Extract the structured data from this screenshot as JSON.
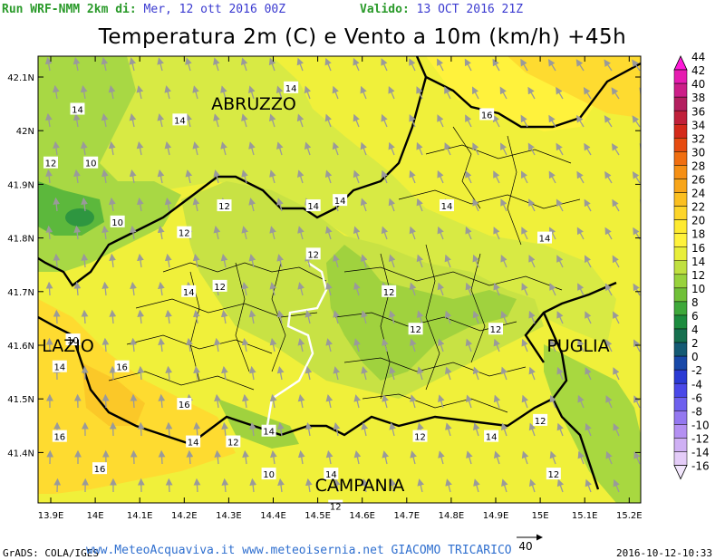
{
  "header": {
    "run_label": "Run WRF-NMM 2km di:",
    "run_date": "Mer, 12 ott 2016 00Z",
    "valid_label": "Valido:",
    "valid_date": "13 OCT 2016 21Z"
  },
  "title": "Temperatura 2m (C) e Vento a 10m (km/h) +45h",
  "axes": {
    "lon_ticks": [
      "13.9E",
      "14E",
      "14.1E",
      "14.2E",
      "14.3E",
      "14.4E",
      "14.5E",
      "14.6E",
      "14.7E",
      "14.8E",
      "14.9E",
      "15E",
      "15.1E",
      "15.2E"
    ],
    "lat_ticks": [
      "42.1N",
      "42N",
      "41.9N",
      "41.8N",
      "41.7N",
      "41.6N",
      "41.5N",
      "41.4N"
    ]
  },
  "regions": {
    "abruzzo": "ABRUZZO",
    "lazio": "LAZIO",
    "puglia": "PUGLIA",
    "campania": "CAMPANIA"
  },
  "contour_labels": [
    {
      "text": "14",
      "lon": 13.96,
      "lat": 42.04
    },
    {
      "text": "12",
      "lon": 13.9,
      "lat": 41.94
    },
    {
      "text": "10",
      "lon": 13.99,
      "lat": 41.94
    },
    {
      "text": "10",
      "lon": 14.05,
      "lat": 41.83
    },
    {
      "text": "14",
      "lon": 14.19,
      "lat": 42.02
    },
    {
      "text": "14",
      "lon": 14.44,
      "lat": 42.08
    },
    {
      "text": "16",
      "lon": 14.88,
      "lat": 42.03
    },
    {
      "text": "14",
      "lon": 14.79,
      "lat": 41.86
    },
    {
      "text": "14",
      "lon": 14.49,
      "lat": 41.86
    },
    {
      "text": "14",
      "lon": 14.55,
      "lat": 41.87
    },
    {
      "text": "12",
      "lon": 14.29,
      "lat": 41.86
    },
    {
      "text": "12",
      "lon": 14.2,
      "lat": 41.81
    },
    {
      "text": "12",
      "lon": 14.49,
      "lat": 41.77
    },
    {
      "text": "14",
      "lon": 15.01,
      "lat": 41.8
    },
    {
      "text": "14",
      "lon": 14.21,
      "lat": 41.7
    },
    {
      "text": "12",
      "lon": 14.28,
      "lat": 41.71
    },
    {
      "text": "12",
      "lon": 14.66,
      "lat": 41.7
    },
    {
      "text": "12",
      "lon": 14.72,
      "lat": 41.63
    },
    {
      "text": "12",
      "lon": 14.9,
      "lat": 41.63
    },
    {
      "text": "10",
      "lon": 13.95,
      "lat": 41.61
    },
    {
      "text": "14",
      "lon": 13.92,
      "lat": 41.56
    },
    {
      "text": "16",
      "lon": 14.06,
      "lat": 41.56
    },
    {
      "text": "16",
      "lon": 14.2,
      "lat": 41.49
    },
    {
      "text": "12",
      "lon": 15.0,
      "lat": 41.46
    },
    {
      "text": "14",
      "lon": 14.89,
      "lat": 41.43
    },
    {
      "text": "16",
      "lon": 13.92,
      "lat": 41.43
    },
    {
      "text": "14",
      "lon": 14.22,
      "lat": 41.42
    },
    {
      "text": "12",
      "lon": 14.31,
      "lat": 41.42
    },
    {
      "text": "14",
      "lon": 14.39,
      "lat": 41.44
    },
    {
      "text": "12",
      "lon": 14.73,
      "lat": 41.43
    },
    {
      "text": "16",
      "lon": 14.01,
      "lat": 41.37
    },
    {
      "text": "10",
      "lon": 14.39,
      "lat": 41.36
    },
    {
      "text": "14",
      "lon": 14.53,
      "lat": 41.36
    },
    {
      "text": "12",
      "lon": 15.03,
      "lat": 41.36
    },
    {
      "text": "12",
      "lon": 14.54,
      "lat": 41.3
    }
  ],
  "legend": {
    "labels": [
      "44",
      "42",
      "40",
      "38",
      "36",
      "34",
      "32",
      "30",
      "28",
      "26",
      "24",
      "22",
      "20",
      "18",
      "16",
      "14",
      "12",
      "10",
      "8",
      "6",
      "4",
      "2",
      "0",
      "-2",
      "-4",
      "-6",
      "-8",
      "-10",
      "-12",
      "-14",
      "-16"
    ],
    "colors": [
      "#ff1ad9",
      "#e61cb0",
      "#cc1e88",
      "#b31f5f",
      "#c0203a",
      "#d42a1a",
      "#e64b10",
      "#f06e10",
      "#f58f14",
      "#f8a519",
      "#fbbf20",
      "#fdd52a",
      "#feea30",
      "#fff23c",
      "#e8ee3a",
      "#c0e040",
      "#98d23c",
      "#70c038",
      "#3ea83a",
      "#1c8c3e",
      "#16704f",
      "#145a74",
      "#1848a8",
      "#2a3ad4",
      "#4a48e8",
      "#6e60ee",
      "#9478f0",
      "#b490f2",
      "#cfb0f4",
      "#e4ccf8",
      "#f2e6fc"
    ]
  },
  "scale_arrow_label": "40",
  "footer": {
    "credit": "GrADS: COLA/IGES",
    "site": "www.MeteoAcquaviva.it www.meteoisernia.net GIACOMO TRICARICO",
    "timestamp": "2016-10-12-10:33"
  }
}
